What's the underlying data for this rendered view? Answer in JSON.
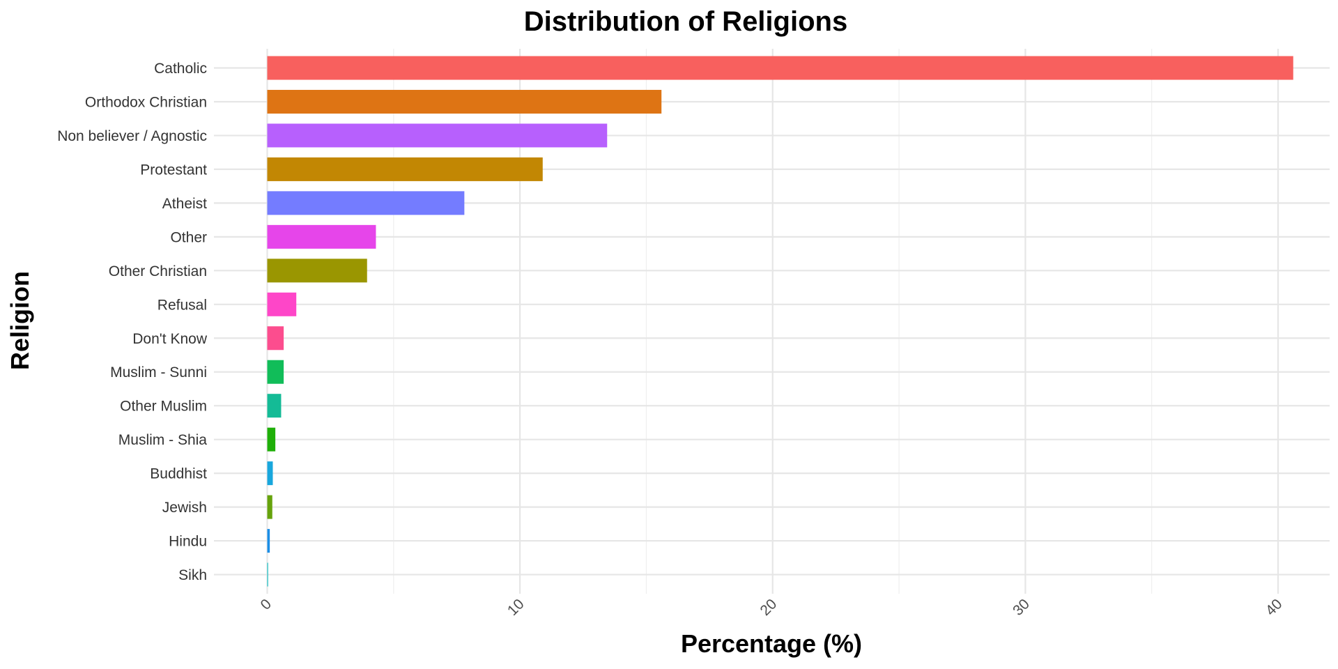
{
  "chart_data": {
    "type": "bar",
    "orientation": "horizontal",
    "title": "Distribution of Religions",
    "xlabel": "Percentage (%)",
    "ylabel": "Religion",
    "xlim": [
      -2.1,
      42.6
    ],
    "x_ticks": [
      0,
      10,
      20,
      30,
      40
    ],
    "x_tick_labels": [
      "0",
      "10",
      "20",
      "30",
      "40"
    ],
    "x_tick_label_rotation_deg": -45,
    "grid": true,
    "legend": "none",
    "categories": [
      "Catholic",
      "Orthodox Christian",
      "Non believer / Agnostic",
      "Protestant",
      "Atheist",
      "Other",
      "Other Christian",
      "Refusal",
      "Don't Know",
      "Muslim - Sunni",
      "Other Muslim",
      "Muslim - Shia",
      "Buddhist",
      "Jewish",
      "Hindu",
      "Sikh"
    ],
    "values": [
      40.6,
      15.6,
      13.45,
      10.9,
      7.8,
      4.3,
      3.95,
      1.15,
      0.65,
      0.65,
      0.55,
      0.32,
      0.22,
      0.2,
      0.1,
      0.03
    ],
    "colors": [
      "#F8605E",
      "#DE7414",
      "#B760FD",
      "#C28703",
      "#747CFF",
      "#E645EA",
      "#9A9601",
      "#FE46C8",
      "#FC4D8E",
      "#11BD59",
      "#14BB96",
      "#1FAF09",
      "#18A7DD",
      "#66A30C",
      "#1B8EE6",
      "#16BDC2"
    ]
  }
}
